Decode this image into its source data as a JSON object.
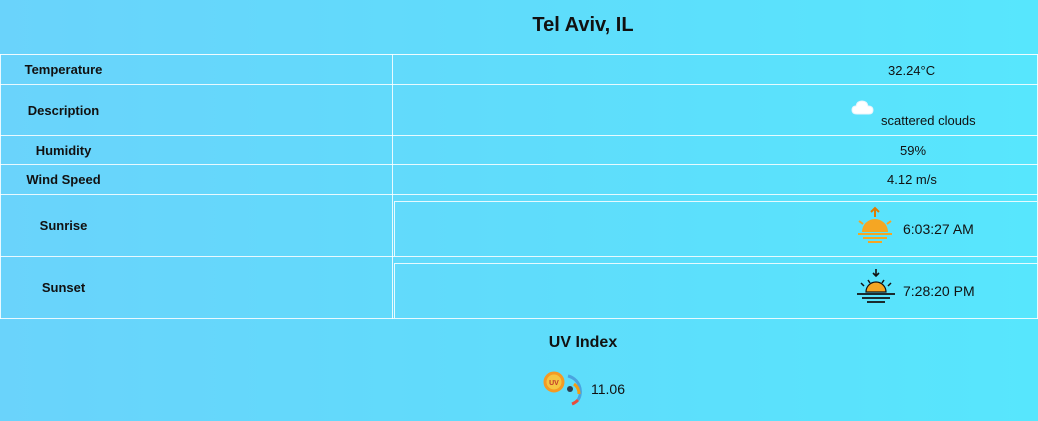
{
  "location": {
    "title": "Tel Aviv, IL"
  },
  "weather": {
    "rows": [
      {
        "label": "Temperature",
        "value": "32.24°C"
      },
      {
        "label": "Description",
        "value": "scattered clouds",
        "icon": "cloud-icon"
      },
      {
        "label": "Humidity",
        "value": "59%"
      },
      {
        "label": "Wind Speed",
        "value": "4.12 m/s"
      },
      {
        "label": "Sunrise",
        "value": "6:03:27 AM",
        "icon": "sunrise-icon"
      },
      {
        "label": "Sunset",
        "value": "7:28:20 PM",
        "icon": "sunset-icon"
      }
    ]
  },
  "uv": {
    "title": "UV Index",
    "value": "11.06",
    "icon": "uv-gauge-icon",
    "icon_text": "UV"
  },
  "colors": {
    "background_start": "#6ad3fb",
    "background_end": "#57e6fd",
    "sun_orange": "#f5a623",
    "text": "#111111"
  }
}
